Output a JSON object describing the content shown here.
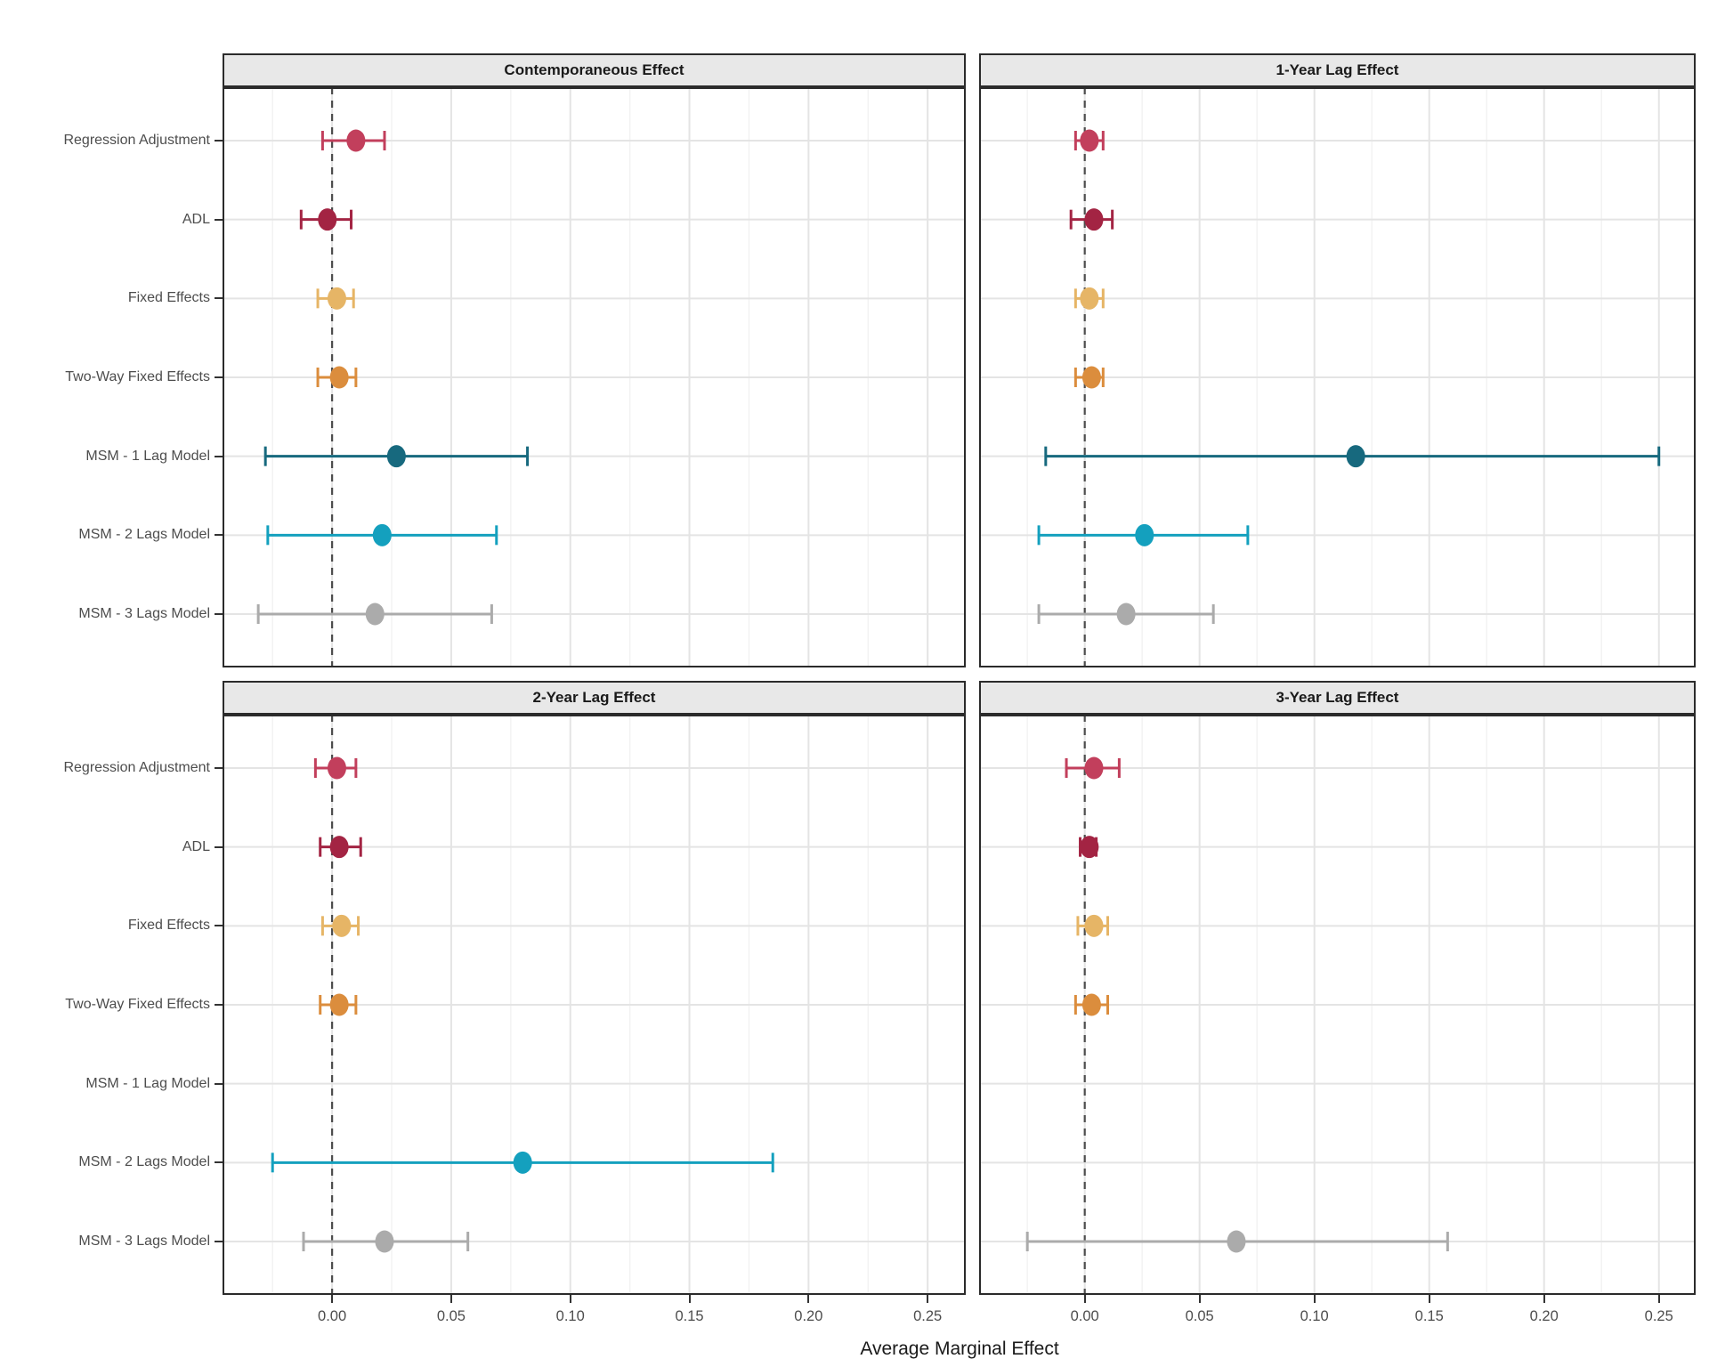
{
  "figure": {
    "background": "#FFFFFF",
    "header_fill": "#E8E8E8",
    "border_color": "#2B2B2B",
    "grid_major_color": "#E4E4E4",
    "grid_minor_color": "#F2F2F2",
    "zero_line_color": "#4D4D4D",
    "axis_text_color": "#4D4D4D",
    "title_text_color": "#1A1A1A"
  },
  "chart_data": {
    "type": "scatter",
    "subtype": "forest-pointrange",
    "xlabel": "Average Marginal Effect",
    "ylabel": "",
    "x_range": [
      -0.046,
      0.266
    ],
    "x_ticks": [
      {
        "value": 0.0,
        "label": "0.00"
      },
      {
        "value": 0.05,
        "label": "0.05"
      },
      {
        "value": 0.1,
        "label": "0.10"
      },
      {
        "value": 0.15,
        "label": "0.15"
      },
      {
        "value": 0.2,
        "label": "0.20"
      },
      {
        "value": 0.25,
        "label": "0.25"
      }
    ],
    "x_minor_ticks": [
      -0.025,
      0.025,
      0.075,
      0.125,
      0.175,
      0.225
    ],
    "zero_reference_line": 0.0,
    "grid": true,
    "legend": "none",
    "models": [
      "Regression Adjustment",
      "ADL",
      "Fixed Effects",
      "Two-Way Fixed Effects",
      "MSM - 1 Lag Model",
      "MSM - 2 Lags Model",
      "MSM - 3 Lags Model"
    ],
    "model_colors": [
      "#C23F5C",
      "#A32443",
      "#E6B566",
      "#DB8D3D",
      "#17697E",
      "#14A0BE",
      "#ABABAB"
    ],
    "panels": [
      {
        "title": "Contemporaneous Effect",
        "estimates": [
          {
            "model": "Regression Adjustment",
            "est": 0.01,
            "lo": -0.004,
            "hi": 0.022
          },
          {
            "model": "ADL",
            "est": -0.002,
            "lo": -0.013,
            "hi": 0.008
          },
          {
            "model": "Fixed Effects",
            "est": 0.002,
            "lo": -0.006,
            "hi": 0.009
          },
          {
            "model": "Two-Way Fixed Effects",
            "est": 0.003,
            "lo": -0.006,
            "hi": 0.01
          },
          {
            "model": "MSM - 1 Lag Model",
            "est": 0.027,
            "lo": -0.028,
            "hi": 0.082
          },
          {
            "model": "MSM - 2 Lags Model",
            "est": 0.021,
            "lo": -0.027,
            "hi": 0.069
          },
          {
            "model": "MSM - 3 Lags Model",
            "est": 0.018,
            "lo": -0.031,
            "hi": 0.067
          }
        ]
      },
      {
        "title": "1-Year Lag Effect",
        "estimates": [
          {
            "model": "Regression Adjustment",
            "est": 0.002,
            "lo": -0.004,
            "hi": 0.008
          },
          {
            "model": "ADL",
            "est": 0.004,
            "lo": -0.006,
            "hi": 0.012
          },
          {
            "model": "Fixed Effects",
            "est": 0.002,
            "lo": -0.004,
            "hi": 0.008
          },
          {
            "model": "Two-Way Fixed Effects",
            "est": 0.003,
            "lo": -0.004,
            "hi": 0.008
          },
          {
            "model": "MSM - 1 Lag Model",
            "est": 0.118,
            "lo": -0.017,
            "hi": 0.25
          },
          {
            "model": "MSM - 2 Lags Model",
            "est": 0.026,
            "lo": -0.02,
            "hi": 0.071
          },
          {
            "model": "MSM - 3 Lags Model",
            "est": 0.018,
            "lo": -0.02,
            "hi": 0.056
          }
        ]
      },
      {
        "title": "2-Year Lag Effect",
        "estimates": [
          {
            "model": "Regression Adjustment",
            "est": 0.002,
            "lo": -0.007,
            "hi": 0.01
          },
          {
            "model": "ADL",
            "est": 0.003,
            "lo": -0.005,
            "hi": 0.012
          },
          {
            "model": "Fixed Effects",
            "est": 0.004,
            "lo": -0.004,
            "hi": 0.011
          },
          {
            "model": "Two-Way Fixed Effects",
            "est": 0.003,
            "lo": -0.005,
            "hi": 0.01
          },
          {
            "model": "MSM - 1 Lag Model",
            "est": null,
            "lo": null,
            "hi": null
          },
          {
            "model": "MSM - 2 Lags Model",
            "est": 0.08,
            "lo": -0.025,
            "hi": 0.185
          },
          {
            "model": "MSM - 3 Lags Model",
            "est": 0.022,
            "lo": -0.012,
            "hi": 0.057
          }
        ]
      },
      {
        "title": "3-Year Lag Effect",
        "estimates": [
          {
            "model": "Regression Adjustment",
            "est": 0.004,
            "lo": -0.008,
            "hi": 0.015
          },
          {
            "model": "ADL",
            "est": 0.002,
            "lo": -0.002,
            "hi": 0.005
          },
          {
            "model": "Fixed Effects",
            "est": 0.004,
            "lo": -0.003,
            "hi": 0.01
          },
          {
            "model": "Two-Way Fixed Effects",
            "est": 0.003,
            "lo": -0.004,
            "hi": 0.01
          },
          {
            "model": "MSM - 1 Lag Model",
            "est": null,
            "lo": null,
            "hi": null
          },
          {
            "model": "MSM - 2 Lags Model",
            "est": null,
            "lo": null,
            "hi": null
          },
          {
            "model": "MSM - 3 Lags Model",
            "est": 0.066,
            "lo": -0.025,
            "hi": 0.158
          }
        ]
      }
    ]
  }
}
